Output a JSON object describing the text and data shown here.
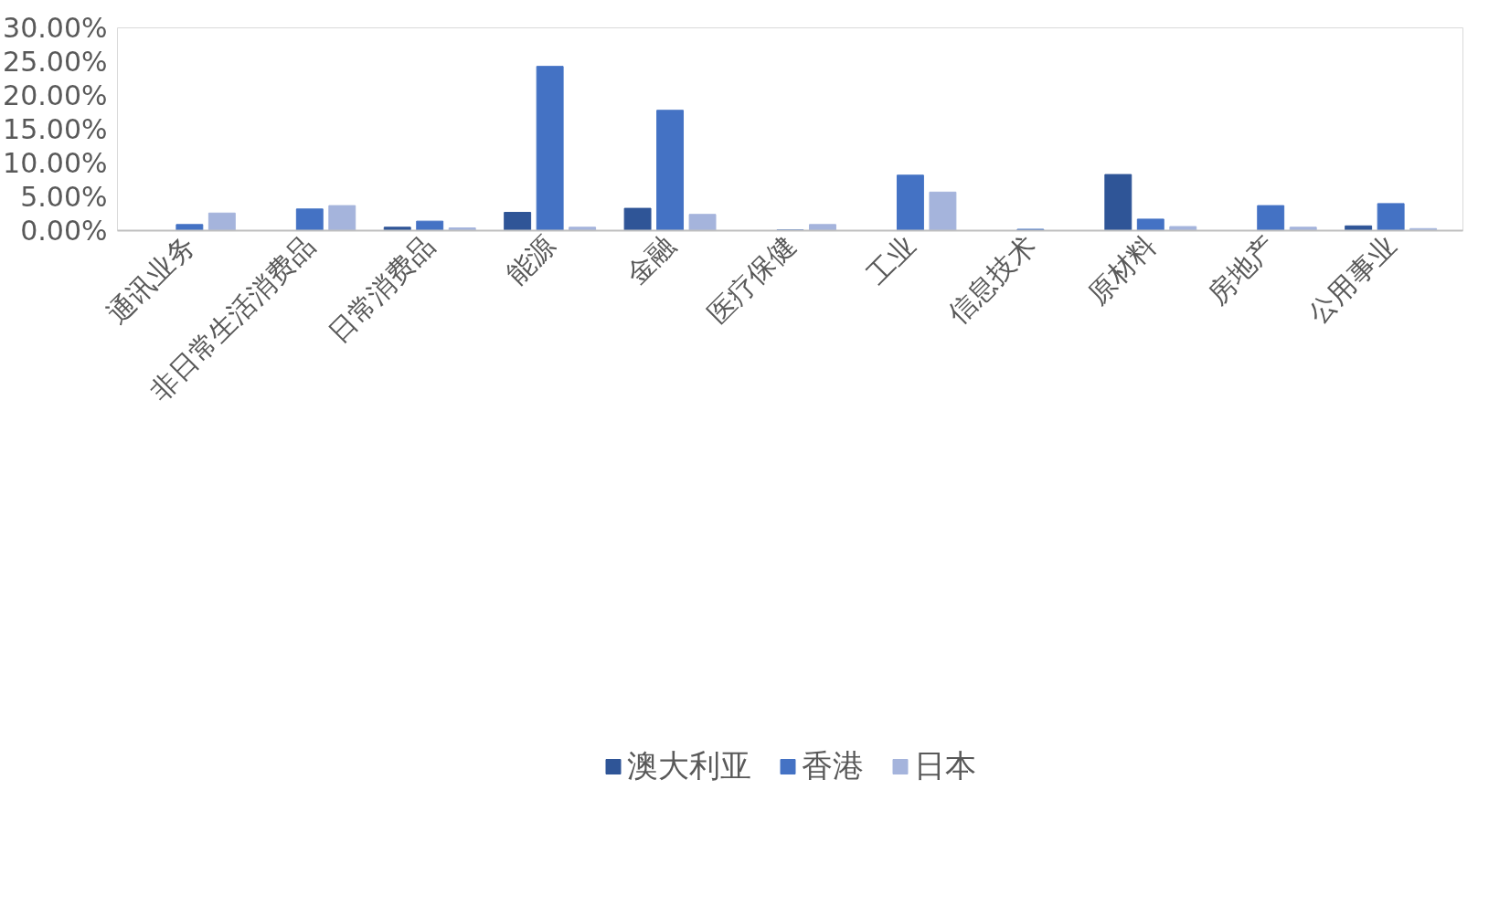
{
  "chart_data": {
    "type": "bar",
    "categories": [
      "通讯业务",
      "非日常生活消费品",
      "日常消费品",
      "能源",
      "金融",
      "医疗保健",
      "工业",
      "信息技术",
      "原材料",
      "房地产",
      "公用事业"
    ],
    "series": [
      {
        "name": "澳大利亚",
        "color": "#2f5597",
        "values": [
          0,
          0,
          0.5,
          2.7,
          3.3,
          0,
          0,
          0,
          8.3,
          0,
          0.7
        ]
      },
      {
        "name": "香港",
        "color": "#4472c4",
        "values": [
          0.9,
          3.2,
          1.4,
          24.3,
          17.8,
          0.1,
          8.2,
          0.2,
          1.7,
          3.7,
          4.0
        ]
      },
      {
        "name": "日本",
        "color": "#a5b4dc",
        "values": [
          2.6,
          3.7,
          0.4,
          0.5,
          2.4,
          0.9,
          5.7,
          0,
          0.6,
          0.5,
          0.3
        ]
      }
    ],
    "ylim": [
      0,
      30
    ],
    "yticks": [
      {
        "value": 0,
        "label": "0.00%"
      },
      {
        "value": 5,
        "label": "5.00%"
      },
      {
        "value": 10,
        "label": "10.00%"
      },
      {
        "value": 15,
        "label": "15.00%"
      },
      {
        "value": 20,
        "label": "20.00%"
      },
      {
        "value": 25,
        "label": "25.00%"
      },
      {
        "value": 30,
        "label": "30.00%"
      }
    ],
    "grid": false,
    "legend": "bottom"
  }
}
